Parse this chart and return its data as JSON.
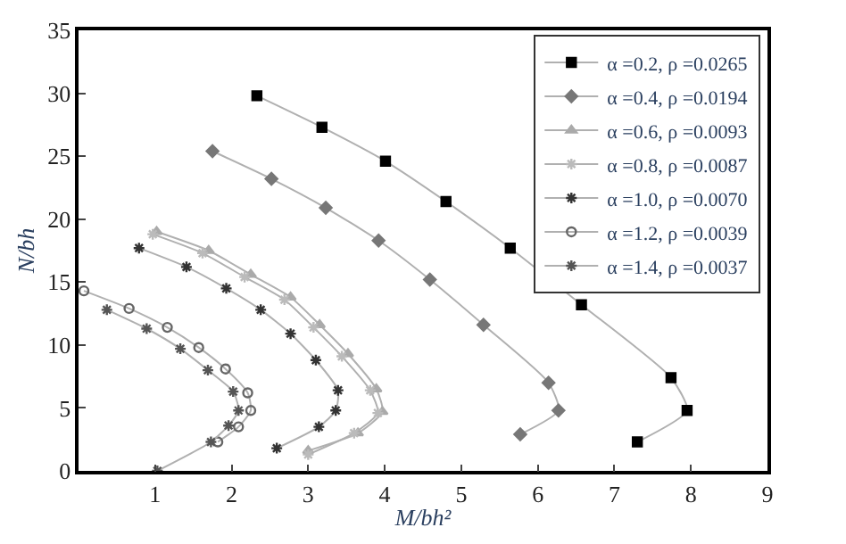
{
  "chart_data": {
    "type": "line",
    "xlabel": "M/bh²",
    "ylabel": "N/bh",
    "xlim": [
      0,
      9
    ],
    "ylim": [
      0,
      35
    ],
    "xticks": [
      1,
      2,
      3,
      4,
      5,
      6,
      7,
      8,
      9
    ],
    "yticks": [
      0,
      5,
      10,
      15,
      20,
      25,
      30,
      35
    ],
    "legend": "top right",
    "series": [
      {
        "name": "α =0.2, ρ =0.0265",
        "color": "#000000",
        "marker": "square",
        "x": [
          2.33,
          3.18,
          4.01,
          4.8,
          5.64,
          6.57,
          7.74,
          7.95,
          7.3
        ],
        "values": [
          29.8,
          27.3,
          24.6,
          21.4,
          17.7,
          13.2,
          7.4,
          4.8,
          2.3
        ]
      },
      {
        "name": "α =0.4, ρ =0.0194",
        "color": "#777777",
        "marker": "diamond",
        "x": [
          1.75,
          2.52,
          3.23,
          3.92,
          4.59,
          5.29,
          6.14,
          6.27,
          5.77
        ],
        "values": [
          25.4,
          23.2,
          20.9,
          18.3,
          15.2,
          11.6,
          7.0,
          4.8,
          2.9
        ]
      },
      {
        "name": "α =0.6, ρ =0.0093",
        "color": "#aaaaaa",
        "marker": "triangle",
        "x": [
          1.02,
          1.7,
          2.25,
          2.77,
          3.15,
          3.52,
          3.89,
          3.97,
          3.65,
          3.0
        ],
        "values": [
          19.0,
          17.5,
          15.6,
          13.8,
          11.6,
          9.3,
          6.5,
          4.7,
          3.0,
          1.6
        ]
      },
      {
        "name": "α =0.8, ρ =0.0087",
        "color": "#bbbbbb",
        "marker": "cross",
        "x": [
          0.97,
          1.62,
          2.17,
          2.69,
          3.07,
          3.44,
          3.81,
          3.91,
          3.6,
          3.0
        ],
        "values": [
          18.8,
          17.3,
          15.4,
          13.6,
          11.4,
          9.1,
          6.4,
          4.6,
          3.0,
          1.3
        ]
      },
      {
        "name": "α =1.0, ρ =0.0070",
        "color": "#333333",
        "marker": "cross",
        "x": [
          0.79,
          1.41,
          1.93,
          2.38,
          2.77,
          3.1,
          3.39,
          3.36,
          3.14,
          2.59
        ],
        "values": [
          17.7,
          16.2,
          14.5,
          12.8,
          10.9,
          8.8,
          6.4,
          4.8,
          3.5,
          1.8
        ]
      },
      {
        "name": "α =1.2, ρ =0.0039",
        "color": "#666666",
        "marker": "circle",
        "x": [
          0.07,
          0.66,
          1.16,
          1.57,
          1.92,
          2.21,
          2.25,
          2.09,
          1.82
        ],
        "values": [
          14.3,
          12.9,
          11.4,
          9.8,
          8.1,
          6.2,
          4.8,
          3.5,
          2.3
        ]
      },
      {
        "name": "α =1.4, ρ =0.0037",
        "color": "#555555",
        "marker": "cross",
        "x": [
          0.37,
          0.89,
          1.33,
          1.69,
          2.02,
          2.09,
          1.96,
          1.73,
          1.03
        ],
        "values": [
          12.8,
          11.3,
          9.7,
          8.0,
          6.3,
          4.8,
          3.6,
          2.3,
          0.0
        ]
      }
    ]
  }
}
